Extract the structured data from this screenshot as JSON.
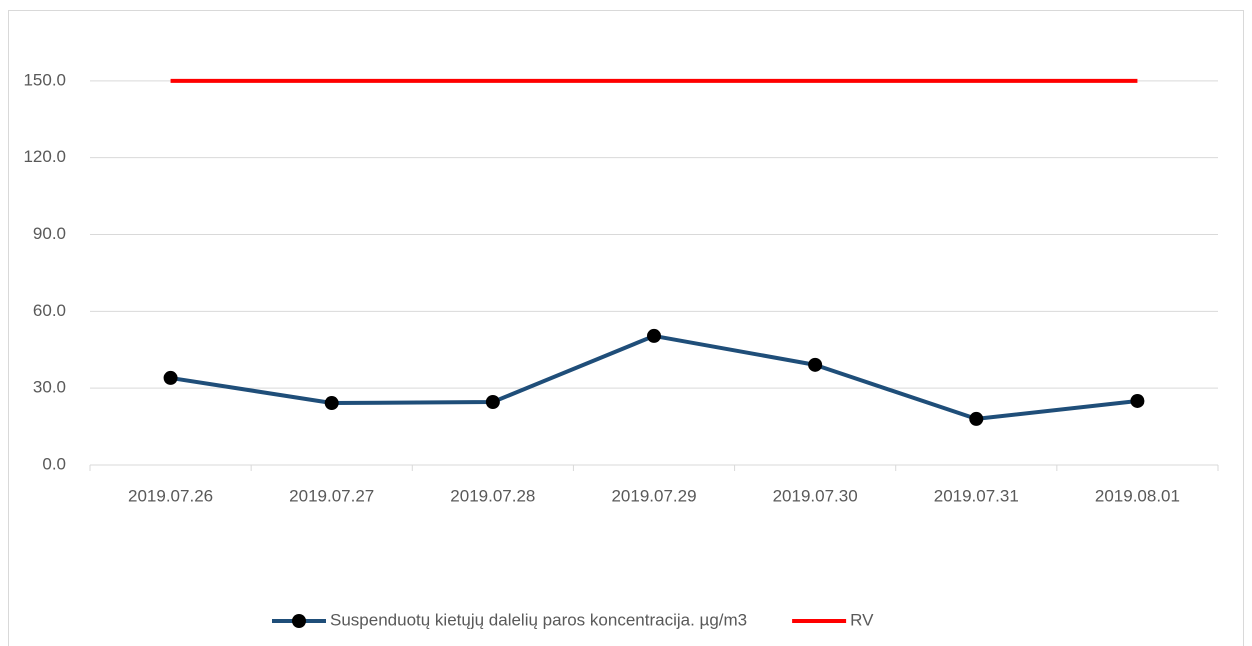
{
  "chart_data": {
    "type": "line",
    "categories": [
      "2019.07.26",
      "2019.07.27",
      "2019.07.28",
      "2019.07.29",
      "2019.07.30",
      "2019.07.31",
      "2019.08.01"
    ],
    "series": [
      {
        "name": "Suspenduotų kietųjų dalelių paros koncentracija. µg/m3",
        "color": "#1f4e79",
        "marker": true,
        "values": [
          34.0,
          24.2,
          24.6,
          50.4,
          39.1,
          18.0,
          25.0
        ]
      },
      {
        "name": "RV",
        "color": "#ff0000",
        "marker": false,
        "values": [
          150,
          150,
          150,
          150,
          150,
          150,
          150
        ]
      }
    ],
    "ylim": [
      0,
      180
    ],
    "yticks": [
      {
        "value": 0,
        "label": "0.0"
      },
      {
        "value": 30,
        "label": "30.0"
      },
      {
        "value": 60,
        "label": "60.0"
      },
      {
        "value": 90,
        "label": "90.0"
      },
      {
        "value": 120,
        "label": "120.0"
      },
      {
        "value": 150,
        "label": "150.0"
      }
    ],
    "grid": true,
    "legend": "bottom"
  }
}
